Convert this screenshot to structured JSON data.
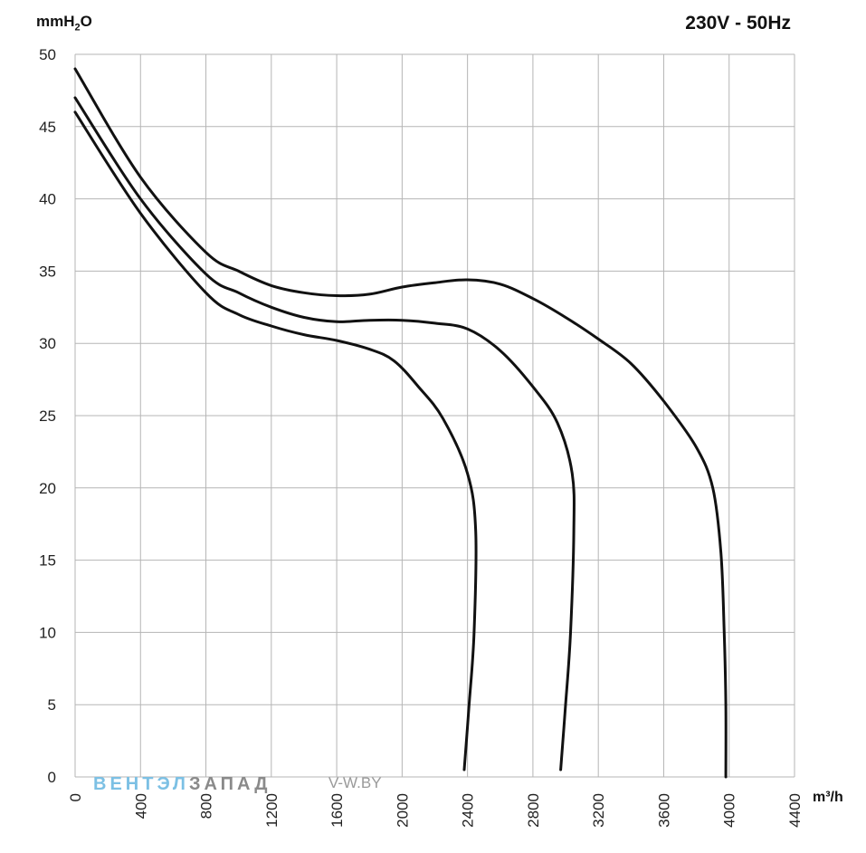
{
  "chart_data": {
    "type": "line",
    "title": "230V - 50Hz",
    "ylabel_main": "mmH",
    "ylabel_sub": "2",
    "ylabel_tail": "O",
    "xlabel": "m³/h",
    "xlim": [
      0,
      4400
    ],
    "ylim": [
      0,
      50
    ],
    "xticks": [
      "0",
      "400",
      "800",
      "1200",
      "1600",
      "2000",
      "2400",
      "2800",
      "3200",
      "3600",
      "4000",
      "4400"
    ],
    "yticks": [
      "0",
      "5",
      "10",
      "15",
      "20",
      "25",
      "30",
      "35",
      "40",
      "45",
      "50"
    ],
    "grid": true,
    "series_color": "#111111",
    "grid_color": "#b5b5b5",
    "series": [
      {
        "points": [
          [
            0,
            49
          ],
          [
            400,
            41.5
          ],
          [
            800,
            36.3
          ],
          [
            1000,
            35
          ],
          [
            1200,
            34
          ],
          [
            1400,
            33.5
          ],
          [
            1600,
            33.3
          ],
          [
            1800,
            33.4
          ],
          [
            2000,
            33.9
          ],
          [
            2200,
            34.2
          ],
          [
            2400,
            34.4
          ],
          [
            2600,
            34.1
          ],
          [
            2800,
            33.1
          ],
          [
            3000,
            31.8
          ],
          [
            3200,
            30.3
          ],
          [
            3400,
            28.6
          ],
          [
            3600,
            26
          ],
          [
            3800,
            22.8
          ],
          [
            3900,
            20
          ],
          [
            3950,
            15.5
          ],
          [
            3970,
            10
          ],
          [
            3980,
            5
          ],
          [
            3980,
            0
          ]
        ]
      },
      {
        "points": [
          [
            0,
            47
          ],
          [
            400,
            40
          ],
          [
            800,
            34.8
          ],
          [
            1000,
            33.5
          ],
          [
            1200,
            32.5
          ],
          [
            1400,
            31.8
          ],
          [
            1600,
            31.5
          ],
          [
            1800,
            31.6
          ],
          [
            2000,
            31.6
          ],
          [
            2200,
            31.4
          ],
          [
            2400,
            31
          ],
          [
            2600,
            29.5
          ],
          [
            2800,
            27
          ],
          [
            2950,
            24.5
          ],
          [
            3040,
            21
          ],
          [
            3050,
            17
          ],
          [
            3030,
            10
          ],
          [
            3000,
            5
          ],
          [
            2970,
            0.5
          ]
        ]
      },
      {
        "points": [
          [
            0,
            46
          ],
          [
            400,
            39
          ],
          [
            800,
            33.5
          ],
          [
            1000,
            32
          ],
          [
            1200,
            31.2
          ],
          [
            1400,
            30.6
          ],
          [
            1600,
            30.2
          ],
          [
            1800,
            29.6
          ],
          [
            1950,
            28.8
          ],
          [
            2100,
            27
          ],
          [
            2250,
            24.8
          ],
          [
            2400,
            21
          ],
          [
            2450,
            17
          ],
          [
            2440,
            10
          ],
          [
            2410,
            5
          ],
          [
            2380,
            0.5
          ]
        ]
      }
    ]
  },
  "watermark": {
    "part1": "ВЕНТЭЛ",
    "part2": "ЗАПАД",
    "part3": "V-W.BY",
    "color1": "#7cc0e4",
    "color2": "#8a8a8a"
  }
}
